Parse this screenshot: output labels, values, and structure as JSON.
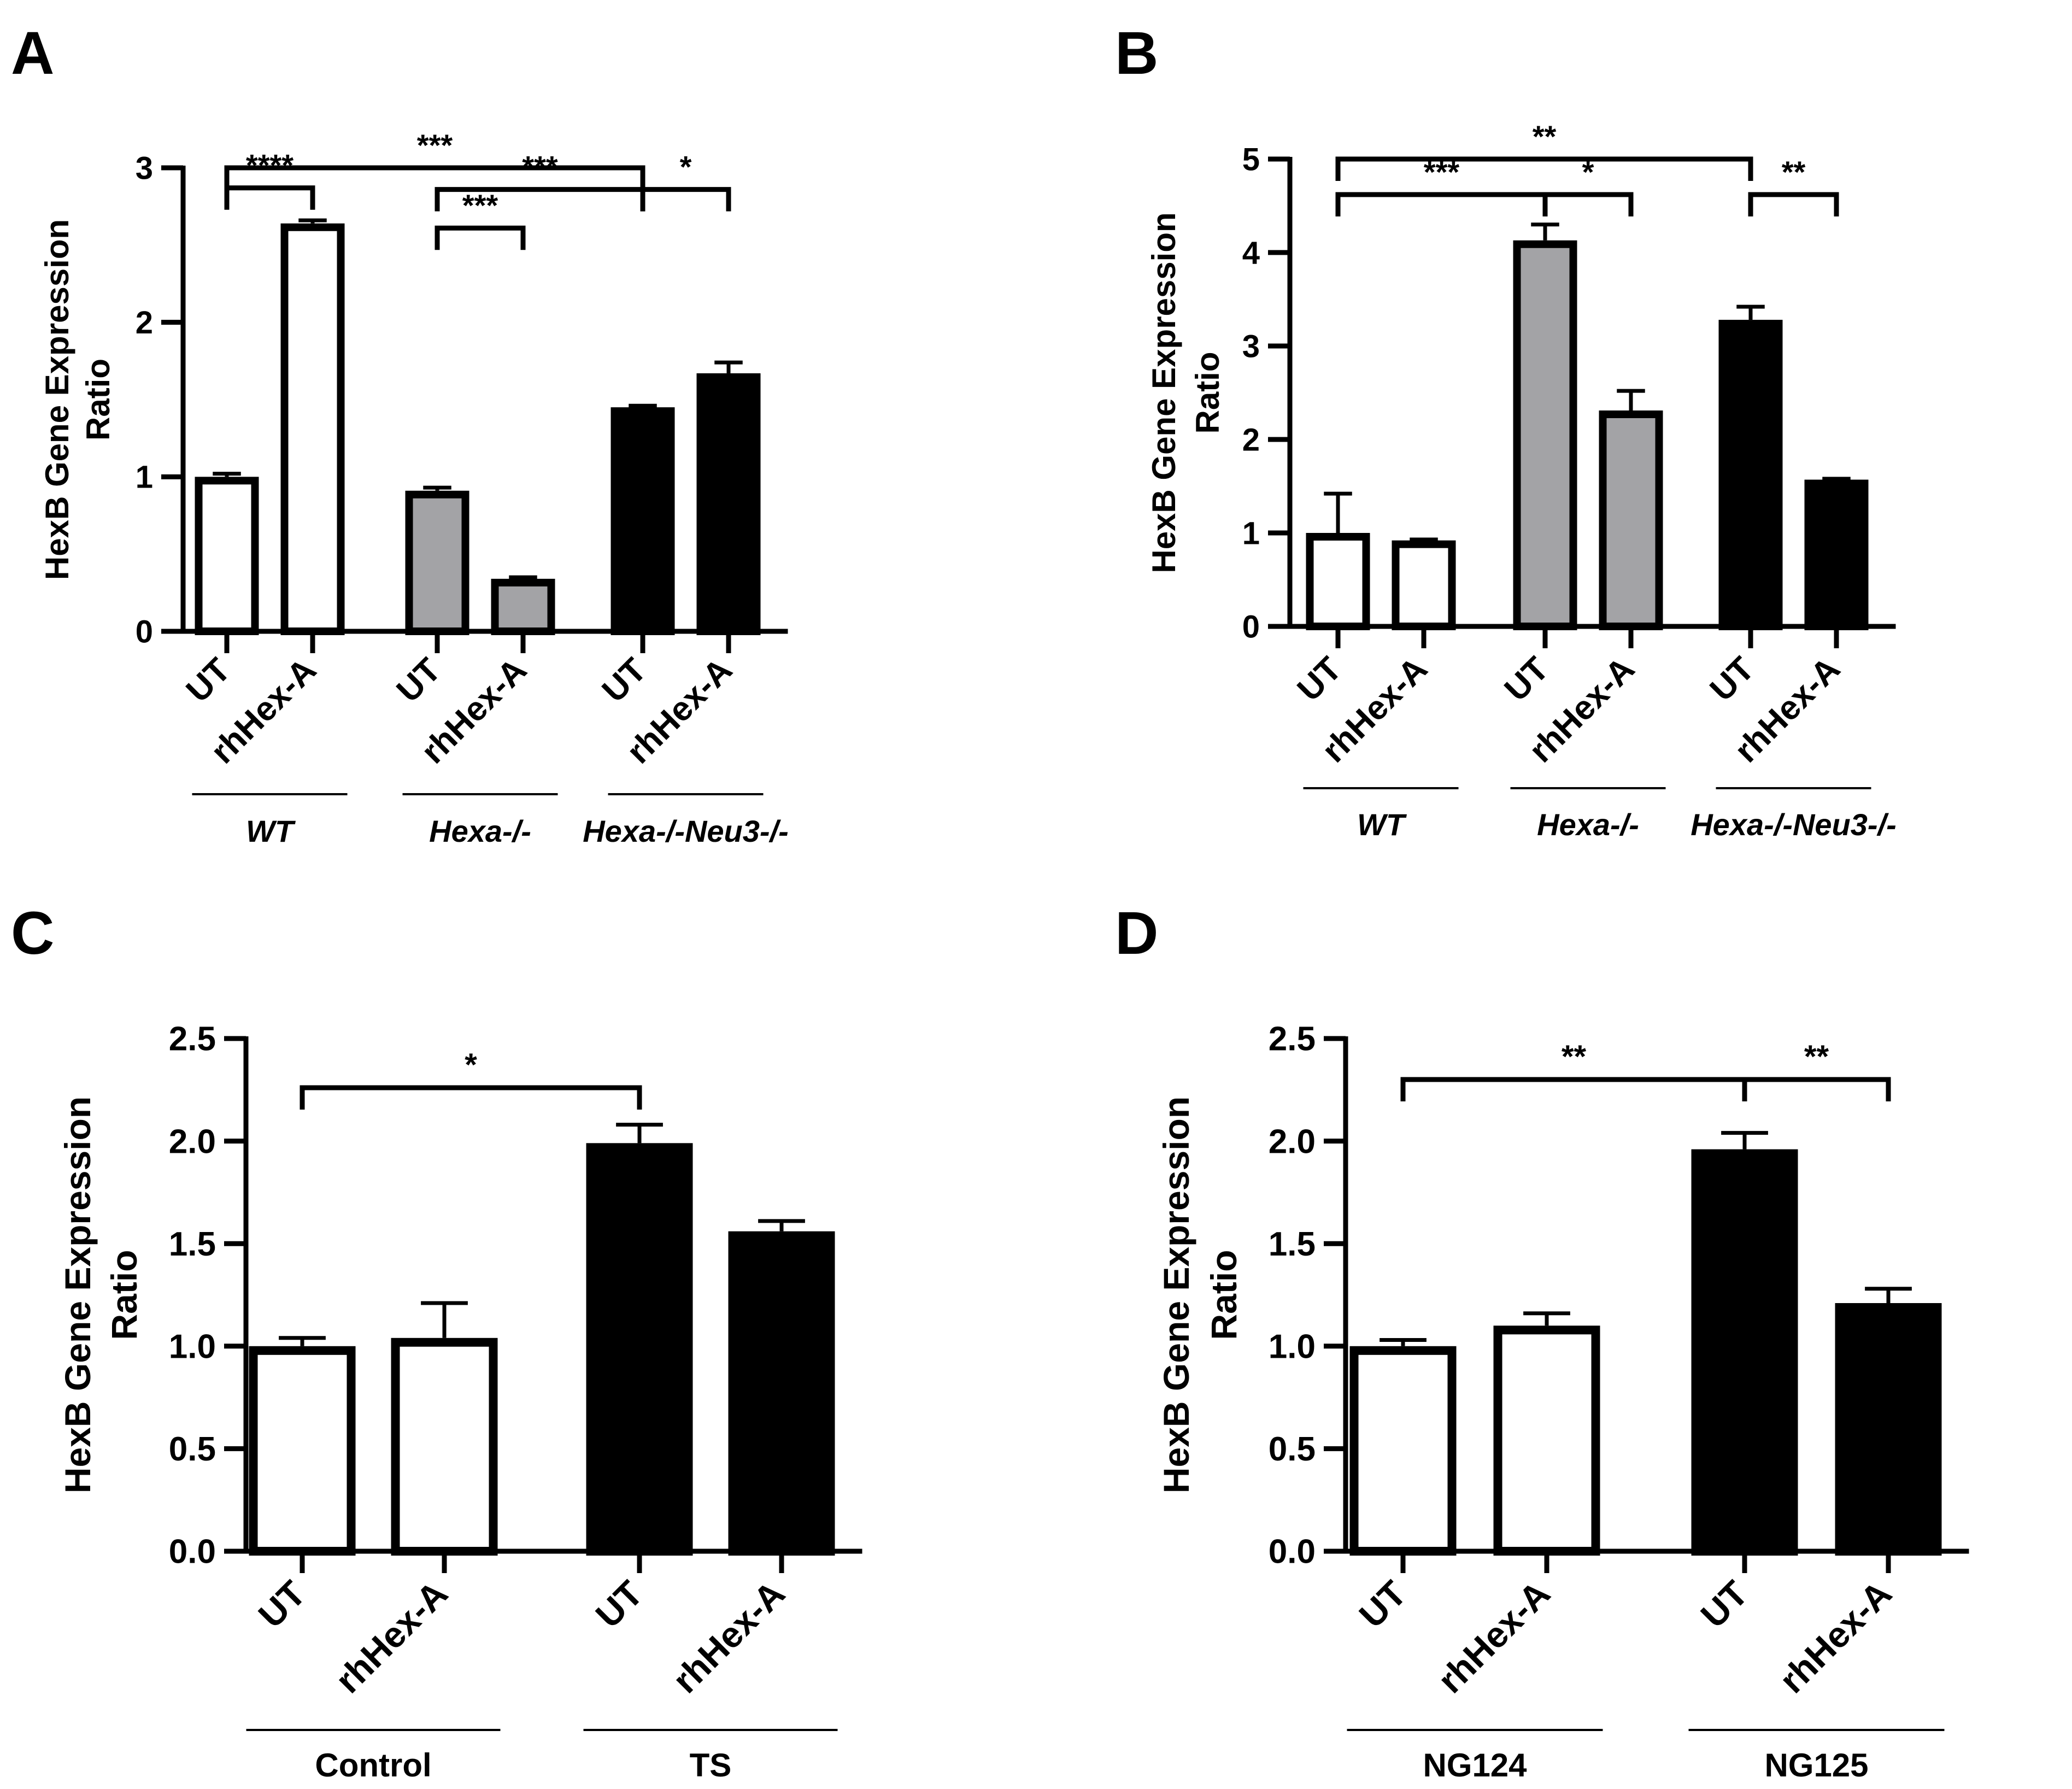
{
  "figure": {
    "panels": [
      "A",
      "B",
      "C",
      "D"
    ]
  },
  "colors": {
    "white": "#ffffff",
    "gray": "#a3a3a6",
    "black": "#000000"
  },
  "chart_data": [
    {
      "panel": "A",
      "type": "bar",
      "ylabel": [
        "HexB Gene Expression",
        "Ratio"
      ],
      "ylim": [
        0,
        3
      ],
      "yticks": [
        0,
        1,
        2,
        3
      ],
      "ytick_labels": [
        "0",
        "1",
        "2",
        "3"
      ],
      "bars": [
        {
          "label": "UT",
          "value": 1.0,
          "err": 0.02,
          "fill": "white"
        },
        {
          "label": "rhHex-A",
          "value": 2.64,
          "err": 0.02,
          "fill": "white"
        },
        {
          "label": "UT",
          "value": 0.91,
          "err": 0.02,
          "fill": "gray"
        },
        {
          "label": "rhHex-A",
          "value": 0.34,
          "err": 0.01,
          "fill": "gray"
        },
        {
          "label": "UT",
          "value": 1.45,
          "err": 0.01,
          "fill": "black"
        },
        {
          "label": "rhHex-A",
          "value": 1.67,
          "err": 0.07,
          "fill": "black"
        }
      ],
      "groups": [
        {
          "name": "WT",
          "bars": [
            0,
            1
          ]
        },
        {
          "name": "Hexa-/-",
          "bars": [
            2,
            3
          ]
        },
        {
          "name": "Hexa-/-Neu3-/-",
          "bars": [
            4,
            5
          ]
        }
      ],
      "significance": [
        {
          "from": 0,
          "to": 4,
          "level": 3.0,
          "label": "***"
        },
        {
          "from": 0,
          "to": 1,
          "level": 2.87,
          "label": "****"
        },
        {
          "from": 2,
          "to": 4,
          "level": 2.86,
          "label": "***"
        },
        {
          "from": 4,
          "to": 5,
          "level": 2.86,
          "label": "*"
        },
        {
          "from": 2,
          "to": 3,
          "level": 2.61,
          "label": "***"
        }
      ]
    },
    {
      "panel": "B",
      "type": "bar",
      "ylabel": [
        "HexB Gene Expression",
        "Ratio"
      ],
      "ylim": [
        0,
        5
      ],
      "yticks": [
        0,
        1,
        2,
        3,
        4,
        5
      ],
      "ytick_labels": [
        "0",
        "1",
        "2",
        "3",
        "4",
        "5"
      ],
      "bars": [
        {
          "label": "UT",
          "value": 1.0,
          "err": 0.42,
          "fill": "white"
        },
        {
          "label": "rhHex-A",
          "value": 0.92,
          "err": 0.01,
          "fill": "white"
        },
        {
          "label": "UT",
          "value": 4.13,
          "err": 0.17,
          "fill": "gray"
        },
        {
          "label": "rhHex-A",
          "value": 2.31,
          "err": 0.21,
          "fill": "gray"
        },
        {
          "label": "UT",
          "value": 3.28,
          "err": 0.14,
          "fill": "black"
        },
        {
          "label": "rhHex-A",
          "value": 1.57,
          "err": 0.01,
          "fill": "black"
        }
      ],
      "groups": [
        {
          "name": "WT",
          "bars": [
            0,
            1
          ]
        },
        {
          "name": "Hexa-/-",
          "bars": [
            2,
            3
          ]
        },
        {
          "name": "Hexa-/-Neu3-/-",
          "bars": [
            4,
            5
          ]
        }
      ],
      "significance": [
        {
          "from": 0,
          "to": 4,
          "level": 5.0,
          "label": "**"
        },
        {
          "from": 0,
          "to": 2,
          "level": 4.62,
          "label": "***"
        },
        {
          "from": 2,
          "to": 3,
          "level": 4.62,
          "label": "*"
        },
        {
          "from": 4,
          "to": 5,
          "level": 4.62,
          "label": "**"
        }
      ]
    },
    {
      "panel": "C",
      "type": "bar",
      "ylabel": [
        "HexB Gene Expression",
        "Ratio"
      ],
      "ylim": [
        0,
        2.5
      ],
      "yticks": [
        0,
        0.5,
        1.0,
        1.5,
        2.0,
        2.5
      ],
      "ytick_labels": [
        "0.0",
        "0.5",
        "1.0",
        "1.5",
        "2.0",
        "2.5"
      ],
      "bars": [
        {
          "label": "UT",
          "value": 1.0,
          "err": 0.04,
          "fill": "white"
        },
        {
          "label": "rhHex-A",
          "value": 1.04,
          "err": 0.17,
          "fill": "white"
        },
        {
          "label": "UT",
          "value": 1.99,
          "err": 0.09,
          "fill": "black"
        },
        {
          "label": "rhHex-A",
          "value": 1.56,
          "err": 0.05,
          "fill": "black"
        }
      ],
      "groups": [
        {
          "name": "Control",
          "bars": [
            0,
            1
          ]
        },
        {
          "name": "TS",
          "bars": [
            2,
            3
          ]
        }
      ],
      "significance": [
        {
          "from": 0,
          "to": 2,
          "level": 2.26,
          "label": "*"
        }
      ]
    },
    {
      "panel": "D",
      "type": "bar",
      "ylabel": [
        "HexB Gene Expression",
        "Ratio"
      ],
      "ylim": [
        0,
        2.5
      ],
      "yticks": [
        0,
        0.5,
        1.0,
        1.5,
        2.0,
        2.5
      ],
      "ytick_labels": [
        "0.0",
        "0.5",
        "1.0",
        "1.5",
        "2.0",
        "2.5"
      ],
      "bars": [
        {
          "label": "UT",
          "value": 1.0,
          "err": 0.03,
          "fill": "white"
        },
        {
          "label": "rhHex-A",
          "value": 1.1,
          "err": 0.06,
          "fill": "white"
        },
        {
          "label": "UT",
          "value": 1.96,
          "err": 0.08,
          "fill": "black"
        },
        {
          "label": "rhHex-A",
          "value": 1.21,
          "err": 0.07,
          "fill": "black"
        }
      ],
      "groups": [
        {
          "name": "NG124",
          "bars": [
            0,
            1
          ]
        },
        {
          "name": "NG125",
          "bars": [
            2,
            3
          ]
        }
      ],
      "significance": [
        {
          "from": 0,
          "to": 2,
          "level": 2.3,
          "label": "**"
        },
        {
          "from": 2,
          "to": 3,
          "level": 2.3,
          "label": "**"
        }
      ]
    }
  ]
}
